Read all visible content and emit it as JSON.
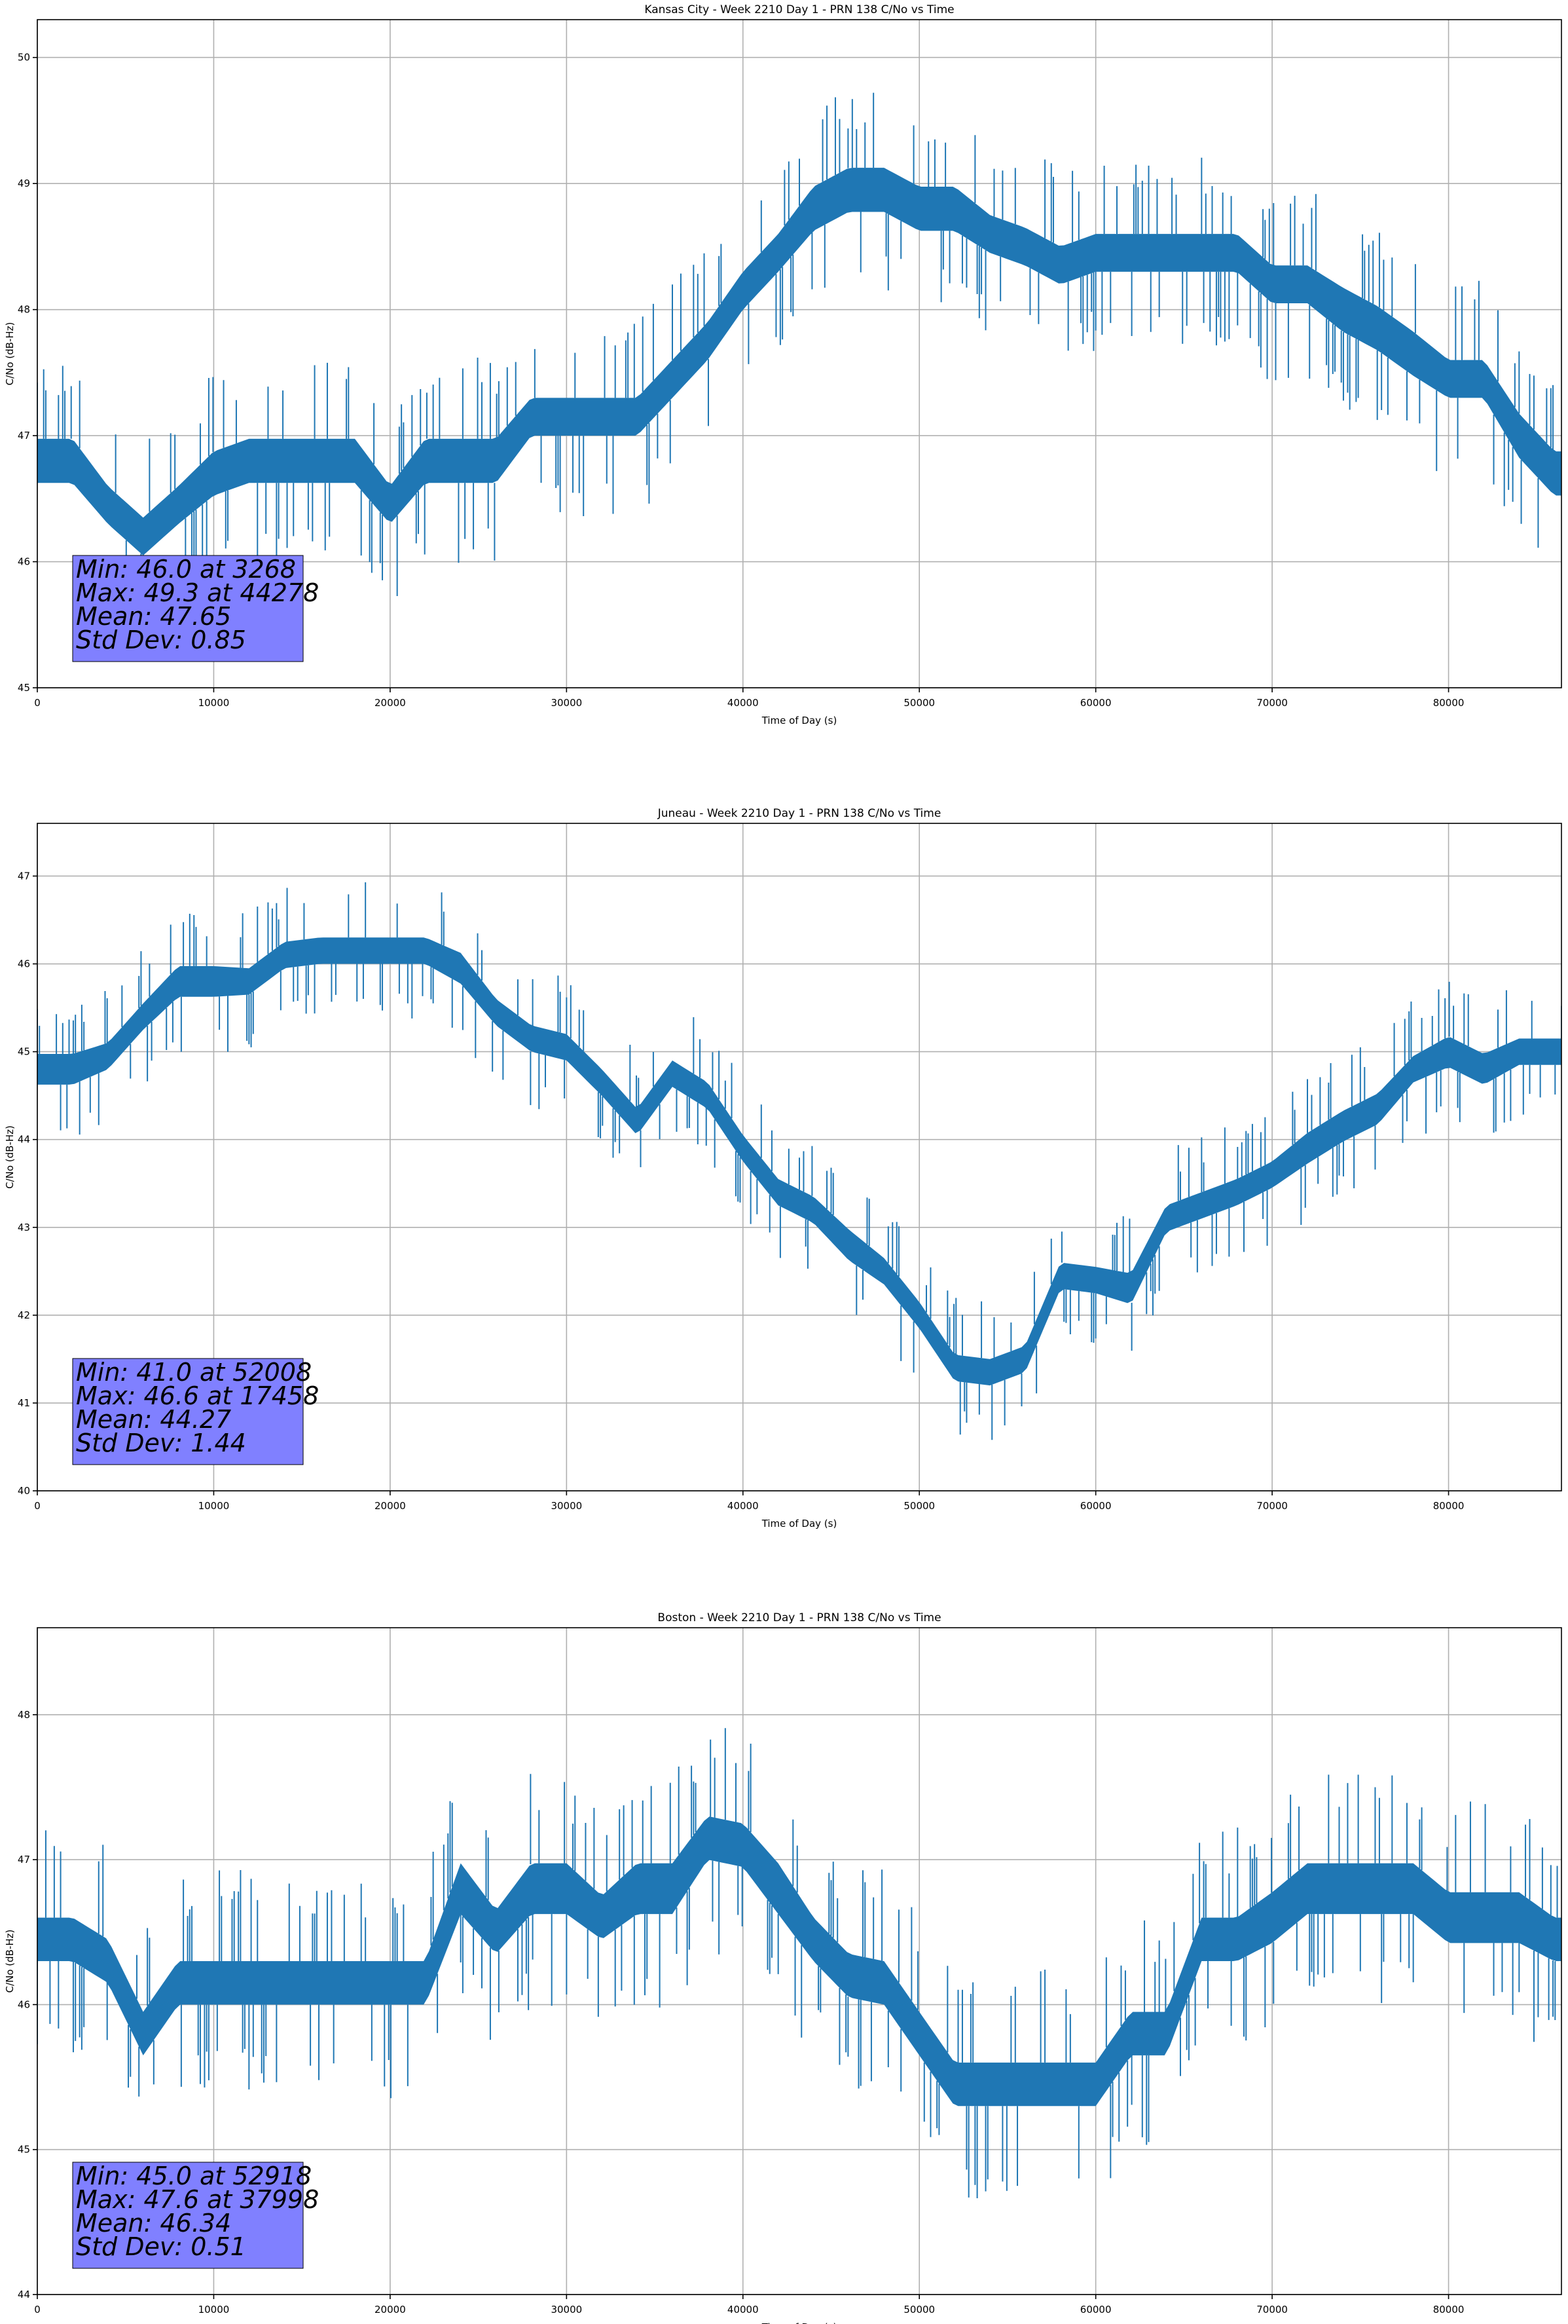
{
  "figure": {
    "line_color": "#1f77b4",
    "grid_color": "#b0b0b0",
    "stats_box_color": "#8080ff"
  },
  "chart_data": [
    {
      "type": "line",
      "title": "Kansas City - Week 2210 Day 1 - PRN 138 C/No vs Time",
      "xlabel": "Time of Day (s)",
      "ylabel": "C/No (dB-Hz)",
      "xlim": [
        0,
        86400
      ],
      "ylim": [
        45,
        50.3
      ],
      "xticks": [
        0,
        10000,
        20000,
        30000,
        40000,
        50000,
        60000,
        70000,
        80000
      ],
      "yticks": [
        45,
        46,
        47,
        48,
        49,
        50
      ],
      "grid": true,
      "stats": [
        "Min: 46.0 at 3268",
        "Max: 49.3 at 44278",
        "Mean: 47.65",
        "Std Dev: 0.85"
      ],
      "series": [
        {
          "x": [
            0,
            2000,
            4000,
            6000,
            8000,
            10000,
            12000,
            14000,
            16000,
            18000,
            20000,
            22000,
            24000,
            26000,
            28000,
            30000,
            32000,
            34000,
            36000,
            38000,
            40000,
            42000,
            44000,
            46000,
            48000,
            50000,
            52000,
            54000,
            56000,
            58000,
            60000,
            62000,
            64000,
            66000,
            68000,
            70000,
            72000,
            74000,
            76000,
            78000,
            80000,
            82000,
            84000,
            86000
          ],
          "y": [
            46.8,
            46.8,
            46.45,
            46.2,
            46.45,
            46.7,
            46.8,
            46.8,
            46.8,
            46.8,
            46.45,
            46.8,
            46.8,
            46.8,
            47.15,
            47.15,
            47.15,
            47.15,
            47.45,
            47.75,
            48.15,
            48.45,
            48.8,
            48.95,
            48.95,
            48.8,
            48.8,
            48.6,
            48.5,
            48.35,
            48.45,
            48.45,
            48.45,
            48.45,
            48.45,
            48.2,
            48.2,
            48.0,
            47.85,
            47.65,
            47.45,
            47.45,
            47.0,
            46.7
          ],
          "band": [
            0.35,
            0.35,
            0.3,
            0.3,
            0.3,
            0.35,
            0.35,
            0.35,
            0.35,
            0.35,
            0.3,
            0.35,
            0.35,
            0.35,
            0.3,
            0.3,
            0.3,
            0.3,
            0.3,
            0.3,
            0.3,
            0.3,
            0.35,
            0.35,
            0.35,
            0.35,
            0.35,
            0.3,
            0.3,
            0.3,
            0.3,
            0.3,
            0.3,
            0.3,
            0.3,
            0.3,
            0.3,
            0.35,
            0.35,
            0.35,
            0.3,
            0.3,
            0.35,
            0.35
          ]
        }
      ]
    },
    {
      "type": "line",
      "title": "Juneau - Week 2210 Day 1 - PRN 138 C/No vs Time",
      "xlabel": "Time of Day (s)",
      "ylabel": "C/No (dB-Hz)",
      "xlim": [
        0,
        86400
      ],
      "ylim": [
        40,
        47.6
      ],
      "xticks": [
        0,
        10000,
        20000,
        30000,
        40000,
        50000,
        60000,
        70000,
        80000
      ],
      "yticks": [
        40,
        41,
        42,
        43,
        44,
        45,
        46,
        47
      ],
      "grid": true,
      "stats": [
        "Min: 41.0 at 52008",
        "Max: 46.6 at 17458",
        "Mean: 44.27",
        "Std Dev: 1.44"
      ],
      "series": [
        {
          "x": [
            0,
            2000,
            4000,
            6000,
            8000,
            10000,
            12000,
            14000,
            16000,
            18000,
            20000,
            22000,
            24000,
            26000,
            28000,
            30000,
            32000,
            34000,
            36000,
            38000,
            40000,
            42000,
            44000,
            46000,
            48000,
            50000,
            52000,
            54000,
            56000,
            58000,
            60000,
            62000,
            64000,
            66000,
            68000,
            70000,
            72000,
            74000,
            76000,
            78000,
            80000,
            82000,
            84000,
            86000
          ],
          "y": [
            44.8,
            44.8,
            44.95,
            45.4,
            45.8,
            45.8,
            45.8,
            46.1,
            46.15,
            46.15,
            46.15,
            46.15,
            45.95,
            45.45,
            45.15,
            45.05,
            44.65,
            44.2,
            44.75,
            44.5,
            43.9,
            43.4,
            43.2,
            42.8,
            42.5,
            42.0,
            41.4,
            41.35,
            41.5,
            42.45,
            42.4,
            42.3,
            43.1,
            43.25,
            43.4,
            43.6,
            43.9,
            44.15,
            44.35,
            44.8,
            45.0,
            44.8,
            45.0,
            45.0
          ],
          "band": [
            0.35,
            0.35,
            0.3,
            0.3,
            0.35,
            0.35,
            0.3,
            0.3,
            0.3,
            0.3,
            0.3,
            0.3,
            0.35,
            0.3,
            0.3,
            0.3,
            0.3,
            0.3,
            0.3,
            0.3,
            0.3,
            0.3,
            0.3,
            0.35,
            0.3,
            0.3,
            0.3,
            0.3,
            0.3,
            0.3,
            0.3,
            0.35,
            0.3,
            0.3,
            0.3,
            0.3,
            0.35,
            0.35,
            0.35,
            0.3,
            0.35,
            0.35,
            0.3,
            0.3
          ]
        }
      ]
    },
    {
      "type": "line",
      "title": "Boston - Week 2210 Day 1 - PRN 138 C/No vs Time",
      "xlabel": "Time of Day (s)",
      "ylabel": "C/No (dB-Hz)",
      "xlim": [
        0,
        86400
      ],
      "ylim": [
        44,
        48.6
      ],
      "xticks": [
        0,
        10000,
        20000,
        30000,
        40000,
        50000,
        60000,
        70000,
        80000
      ],
      "yticks": [
        44,
        45,
        46,
        47,
        48
      ],
      "grid": true,
      "stats": [
        "Min: 45.0 at 52918",
        "Max: 47.6 at 37998",
        "Mean: 46.34",
        "Std Dev: 0.51"
      ],
      "series": [
        {
          "x": [
            0,
            2000,
            4000,
            6000,
            8000,
            10000,
            12000,
            14000,
            16000,
            18000,
            20000,
            22000,
            24000,
            26000,
            28000,
            30000,
            32000,
            34000,
            36000,
            38000,
            40000,
            42000,
            44000,
            46000,
            48000,
            50000,
            52000,
            54000,
            56000,
            58000,
            60000,
            62000,
            64000,
            66000,
            68000,
            70000,
            72000,
            74000,
            76000,
            78000,
            80000,
            82000,
            84000,
            86000
          ],
          "y": [
            46.45,
            46.45,
            46.3,
            45.8,
            46.15,
            46.15,
            46.15,
            46.15,
            46.15,
            46.15,
            46.15,
            46.15,
            46.8,
            46.5,
            46.8,
            46.8,
            46.6,
            46.8,
            46.8,
            47.15,
            47.1,
            46.8,
            46.45,
            46.2,
            46.15,
            45.8,
            45.45,
            45.45,
            45.45,
            45.45,
            45.45,
            45.8,
            45.8,
            46.45,
            46.45,
            46.6,
            46.8,
            46.8,
            46.8,
            46.8,
            46.6,
            46.6,
            46.6,
            46.45
          ],
          "band": [
            0.3,
            0.3,
            0.3,
            0.3,
            0.3,
            0.3,
            0.3,
            0.3,
            0.3,
            0.3,
            0.3,
            0.3,
            0.35,
            0.3,
            0.35,
            0.35,
            0.3,
            0.35,
            0.35,
            0.3,
            0.3,
            0.35,
            0.3,
            0.3,
            0.3,
            0.3,
            0.3,
            0.3,
            0.3,
            0.3,
            0.3,
            0.3,
            0.3,
            0.3,
            0.3,
            0.35,
            0.35,
            0.35,
            0.35,
            0.35,
            0.35,
            0.35,
            0.35,
            0.3
          ]
        }
      ]
    }
  ]
}
